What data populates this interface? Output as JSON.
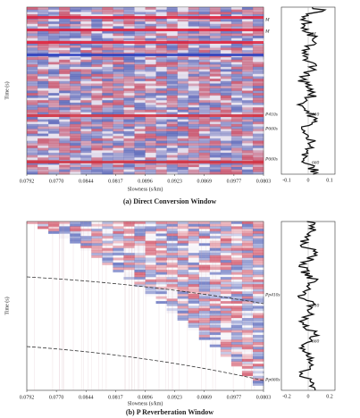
{
  "panels": [
    {
      "caption": "(a) Direct Conversion Window",
      "xlabel": "Slowness (s/km)",
      "ylabel": "Time (s)",
      "xticks": [
        "0.0792",
        "0.0770",
        "0.0844",
        "0.0817",
        "0.0896",
        "0.0923",
        "0.0869",
        "0.0977",
        "0.0803"
      ],
      "trace_ticks": [
        "-0.1",
        "0",
        "0.1"
      ],
      "phase_labels": [
        "M",
        "M",
        "P410s",
        "P660s",
        "P660s"
      ],
      "trace_labels": [
        "M",
        "410",
        "660"
      ]
    },
    {
      "caption": "(b) P Reverberation Window",
      "xlabel": "Slowness (s/km)",
      "ylabel": "Time (s)",
      "xticks": [
        "0.0792",
        "0.0770",
        "0.0844",
        "0.0817",
        "0.0896",
        "0.0923",
        "0.0869",
        "0.0977",
        "0.0803"
      ],
      "trace_ticks": [
        "-0.2",
        "0",
        "0.2"
      ],
      "phase_labels": [
        "Pp410s",
        "Pp660s"
      ],
      "trace_labels": [
        "410",
        "660"
      ]
    }
  ]
}
